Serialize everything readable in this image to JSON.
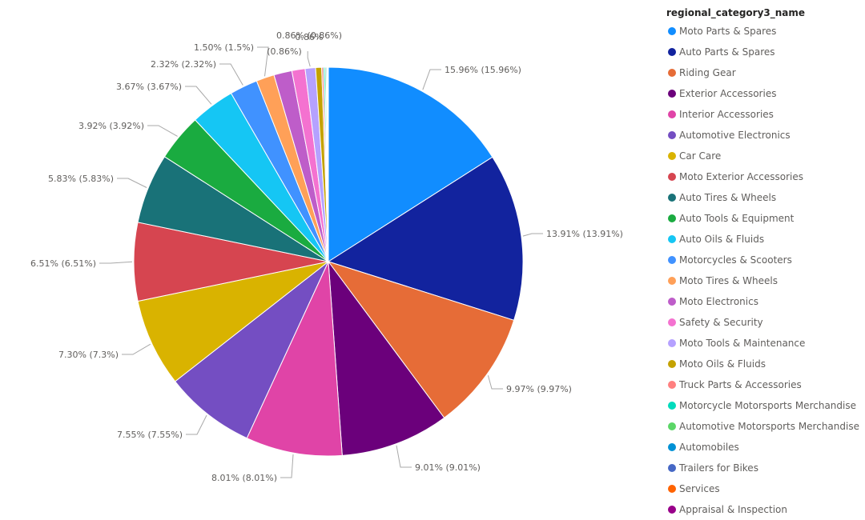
{
  "chart_data": {
    "type": "pie",
    "legend_title": "regional_category3_name",
    "legend_position": "right",
    "slices": [
      {
        "name": "Moto Parts & Spares",
        "value": 15.96,
        "label": "15.96% (15.96%)",
        "color": "#118DFF"
      },
      {
        "name": "Auto Parts & Spares",
        "value": 13.91,
        "label": "13.91% (13.91%)",
        "color": "#12239E"
      },
      {
        "name": "Riding Gear",
        "value": 9.97,
        "label": "9.97% (9.97%)",
        "color": "#E66C37"
      },
      {
        "name": "Exterior Accessories",
        "value": 9.01,
        "label": "9.01% (9.01%)",
        "color": "#6B007B"
      },
      {
        "name": "Interior Accessories",
        "value": 8.01,
        "label": "8.01% (8.01%)",
        "color": "#E044A7"
      },
      {
        "name": "Automotive Electronics",
        "value": 7.55,
        "label": "7.55% (7.55%)",
        "color": "#744EC2"
      },
      {
        "name": "Car Care",
        "value": 7.3,
        "label": "7.30% (7.3%)",
        "color": "#D9B300"
      },
      {
        "name": "Moto Exterior Accessories",
        "value": 6.51,
        "label": "6.51% (6.51%)",
        "color": "#D64550"
      },
      {
        "name": "Auto Tires & Wheels",
        "value": 5.83,
        "label": "5.83% (5.83%)",
        "color": "#197278"
      },
      {
        "name": "Auto Tools & Equipment",
        "value": 3.92,
        "label": "3.92% (3.92%)",
        "color": "#1AAB40"
      },
      {
        "name": "Auto Oils & Fluids",
        "value": 3.67,
        "label": "3.67% (3.67%)",
        "color": "#15C6F4"
      },
      {
        "name": "Motorcycles & Scooters",
        "value": 2.32,
        "label": "2.32% (2.32%)",
        "color": "#4092FF"
      },
      {
        "name": "Moto Tires & Wheels",
        "value": 1.5,
        "label": "1.50% (1.5%)",
        "color": "#FFA058"
      },
      {
        "name": "Moto Electronics",
        "value": 1.5,
        "label": "",
        "color": "#BE5DC9"
      },
      {
        "name": "Safety & Security",
        "value": 1.1,
        "label": "",
        "color": "#F472D0"
      },
      {
        "name": "Moto Tools & Maintenance",
        "value": 0.86,
        "label": "0.86% (0.86%)",
        "color": "#B5A1FF"
      },
      {
        "name": "Moto Oils & Fluids",
        "value": 0.5,
        "label": "",
        "color": "#C4A200"
      },
      {
        "name": "Truck Parts & Accessories",
        "value": 0.15,
        "label": "",
        "color": "#FF8080"
      },
      {
        "name": "Motorcycle Motorsports Merchandise",
        "value": 0.12,
        "label": "",
        "color": "#00DBBC"
      },
      {
        "name": "Automotive Motorsports Merchandise",
        "value": 0.1,
        "label": "",
        "color": "#5BD667"
      },
      {
        "name": "Automobiles",
        "value": 0.08,
        "label": "",
        "color": "#0091D5"
      },
      {
        "name": "Trailers for Bikes",
        "value": 0.05,
        "label": "",
        "color": "#4668C5"
      },
      {
        "name": "Services",
        "value": 0.03,
        "label": "",
        "color": "#FF6300"
      },
      {
        "name": "Appraisal & Inspection",
        "value": 0.02,
        "label": "",
        "color": "#99008A"
      }
    ]
  },
  "extra_labels": [
    {
      "text": "0.86%"
    },
    {
      "text": "(0.86%)"
    }
  ]
}
